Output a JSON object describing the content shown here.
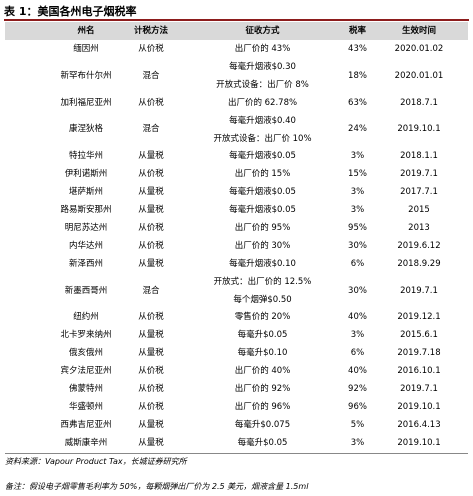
{
  "header": {
    "label": "表 1：",
    "title": "美国各州电子烟税率"
  },
  "table": {
    "columns": [
      "州名",
      "计税方法",
      "征收方式",
      "税率",
      "生效时间"
    ],
    "rows": [
      [
        "缅因州",
        "从价税",
        [
          "出厂价的 43%"
        ],
        "43%",
        "2020.01.02"
      ],
      [
        "新罕布什尔州",
        "混合",
        [
          "每毫升烟液$0.30",
          "开放式设备：出厂价 8%"
        ],
        "18%",
        "2020.01.01"
      ],
      [
        "加利福尼亚州",
        "从价税",
        [
          "出厂价的 62.78%"
        ],
        "63%",
        "2018.7.1"
      ],
      [
        "康涅狄格",
        "混合",
        [
          "每毫升烟液$0.40",
          "开放式设备：出厂价 10%"
        ],
        "24%",
        "2019.10.1"
      ],
      [
        "特拉华州",
        "从量税",
        [
          "每毫升烟液$0.05"
        ],
        "3%",
        "2018.1.1"
      ],
      [
        "伊利诺斯州",
        "从价税",
        [
          "出厂价的 15%"
        ],
        "15%",
        "2019.7.1"
      ],
      [
        "堪萨斯州",
        "从量税",
        [
          "每毫升烟液$0.05"
        ],
        "3%",
        "2017.7.1"
      ],
      [
        "路易斯安那州",
        "从量税",
        [
          "每毫升烟液$0.05"
        ],
        "3%",
        "2015"
      ],
      [
        "明尼苏达州",
        "从价税",
        [
          "出厂价的 95%"
        ],
        "95%",
        "2013"
      ],
      [
        "内华达州",
        "从价税",
        [
          "出厂价的 30%"
        ],
        "30%",
        "2019.6.12"
      ],
      [
        "新泽西州",
        "从量税",
        [
          "每毫升烟液$0.10"
        ],
        "6%",
        "2018.9.29"
      ],
      [
        "新墨西哥州",
        "混合",
        [
          "开放式：出厂价的 12.5%",
          "每个烟弹$0.50"
        ],
        "30%",
        "2019.7.1"
      ],
      [
        "纽约州",
        "从价税",
        [
          "零售价的 20%"
        ],
        "40%",
        "2019.12.1"
      ],
      [
        "北卡罗来纳州",
        "从量税",
        [
          "每毫升$0.05"
        ],
        "3%",
        "2015.6.1"
      ],
      [
        "俄亥俄州",
        "从量税",
        [
          "每毫升$0.10"
        ],
        "6%",
        "2019.7.18"
      ],
      [
        "宾夕法尼亚州",
        "从价税",
        [
          "出厂价的 40%"
        ],
        "40%",
        "2016.10.1"
      ],
      [
        "佛蒙特州",
        "从价税",
        [
          "出厂价的 92%"
        ],
        "92%",
        "2019.7.1"
      ],
      [
        "华盛顿州",
        "从价税",
        [
          "出厂价的 96%"
        ],
        "96%",
        "2019.10.1"
      ],
      [
        "西弗吉尼亚州",
        "从量税",
        [
          "每毫升$0.075"
        ],
        "5%",
        "2016.4.13"
      ],
      [
        "威斯康辛州",
        "从量税",
        [
          "每毫升$0.05"
        ],
        "3%",
        "2019.10.1"
      ]
    ]
  },
  "footer": {
    "source": "资料来源：Vapour Product Tax，长城证券研究所",
    "note": "备注：假设电子烟零售毛利率为 50%，每颗烟弹出厂价为 2.5 美元，烟液含量 1.5ml"
  }
}
